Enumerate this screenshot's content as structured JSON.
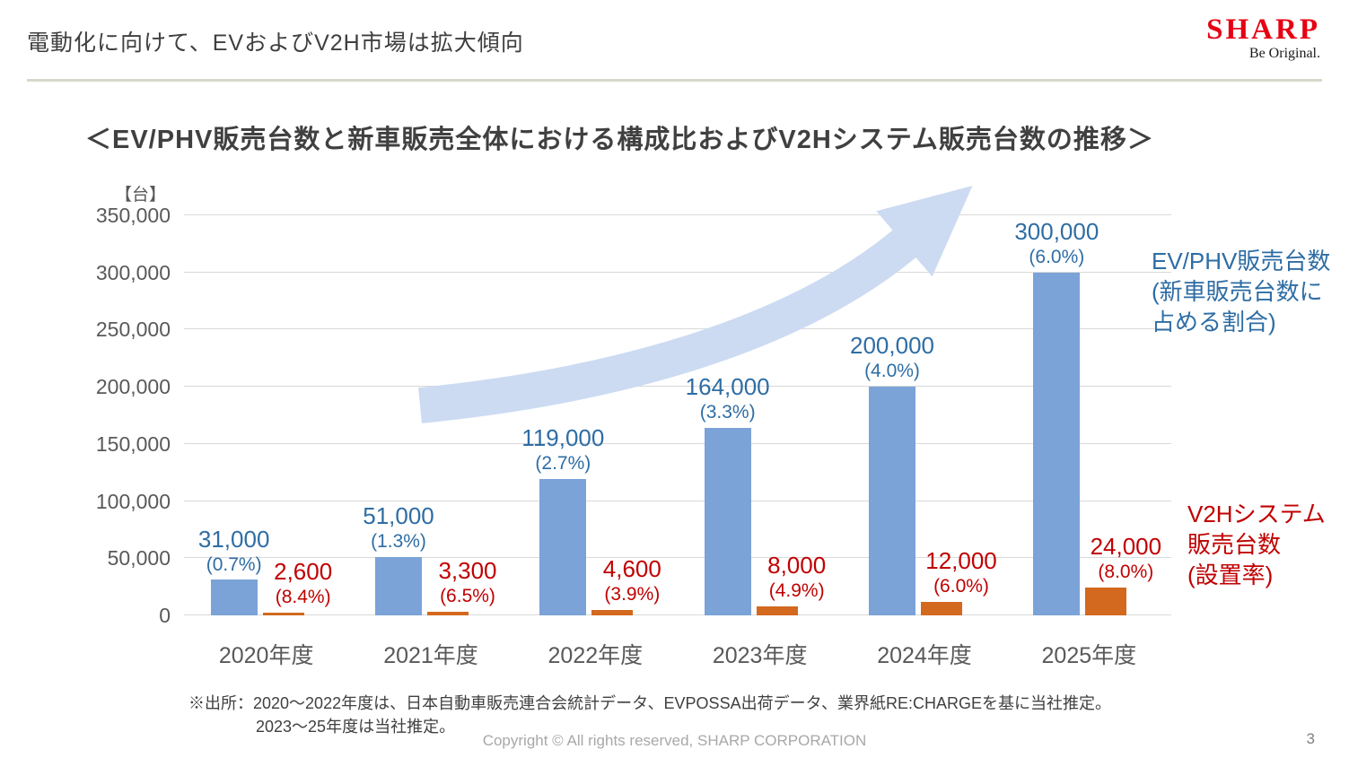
{
  "header": {
    "title": "電動化に向けて、EVおよびV2H市場は拡大傾向",
    "logo_text": "SHARP",
    "logo_tagline": "Be Original."
  },
  "chart_title": "＜EV/PHV販売台数と新車販売全体における構成比およびV2Hシステム販売台数の推移＞",
  "chart_data": {
    "type": "bar",
    "title": "EV/PHV販売台数と新車販売全体における構成比およびV2Hシステム販売台数の推移",
    "unit_label": "【台】",
    "categories": [
      "2020年度",
      "2021年度",
      "2022年度",
      "2023年度",
      "2024年度",
      "2025年度"
    ],
    "series": [
      {
        "name": "EV/PHV販売台数(新車販売台数に占める割合)",
        "values": [
          31000,
          51000,
          119000,
          164000,
          200000,
          300000
        ],
        "value_labels": [
          "31,000",
          "51,000",
          "119,000",
          "164,000",
          "200,000",
          "300,000"
        ],
        "share_labels": [
          "(0.7%)",
          "(1.3%)",
          "(2.7%)",
          "(3.3%)",
          "(4.0%)",
          "(6.0%)"
        ],
        "color": "#7ba3d7"
      },
      {
        "name": "V2Hシステム販売台数(設置率)",
        "values": [
          2600,
          3300,
          4600,
          8000,
          12000,
          24000
        ],
        "value_labels": [
          "2,600",
          "3,300",
          "4,600",
          "8,000",
          "12,000",
          "24,000"
        ],
        "share_labels": [
          "(8.4%)",
          "(6.5%)",
          "(3.9%)",
          "(4.9%)",
          "(6.0%)",
          "(8.0%)"
        ],
        "color": "#d2691e"
      }
    ],
    "ylim": [
      0,
      350000
    ],
    "ytick_step": 50000,
    "ytick_labels": [
      "0",
      "50,000",
      "100,000",
      "150,000",
      "200,000",
      "250,000",
      "300,000",
      "350,000"
    ],
    "grid": true,
    "legend_position": "right"
  },
  "annotations": {
    "ev": [
      "EV/PHV販売台数",
      "(新車販売台数に",
      "占める割合)"
    ],
    "v2h": [
      "V2Hシステム",
      "販売台数",
      "(設置率)"
    ]
  },
  "footer": {
    "source_line1": "※出所：2020〜2022年度は、日本自動車販売連合会統計データ、EVPOSSA出荷データ、業界紙RE:CHARGEを基に当社推定。",
    "source_line2": "2023〜25年度は当社推定。",
    "copyright": "Copyright © All rights reserved, SHARP CORPORATION",
    "page_number": "3"
  },
  "colors": {
    "ev_bar": "#7ba3d7",
    "v2h_bar": "#d2691e",
    "ev_text": "#2e6da4",
    "v2h_text": "#c00000",
    "arrow": "#ccdbf2",
    "logo_red": "#e60012"
  }
}
